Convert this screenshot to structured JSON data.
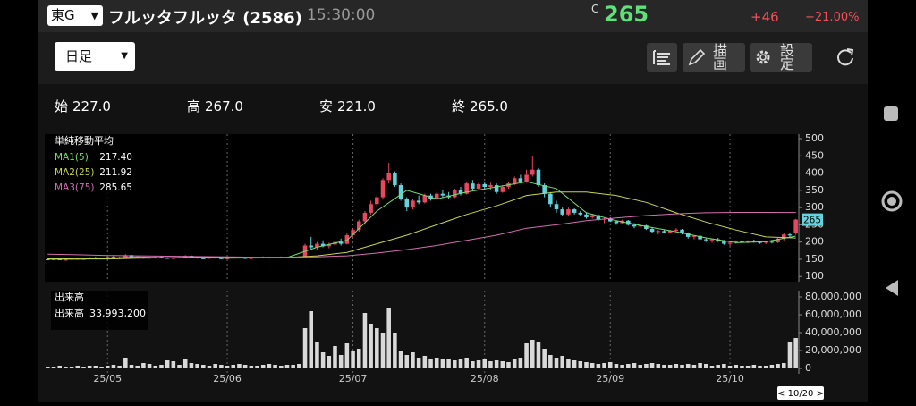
{
  "header": {
    "market": "東G",
    "name": "フルッタフルッタ (2586)",
    "time": "15:30:00",
    "c_label": "C",
    "price": "265",
    "change": "+46",
    "change_pct": "+21.00%"
  },
  "toolbar": {
    "period": "日足",
    "draw": "描画",
    "settings": "設定"
  },
  "ohlc": [
    {
      "label": "始",
      "value": "227.0"
    },
    {
      "label": "高",
      "value": "267.0"
    },
    {
      "label": "安",
      "value": "221.0"
    },
    {
      "label": "終",
      "value": "265.0"
    }
  ],
  "cursor_label": "< 10/20 >",
  "chart_data": [
    {
      "type": "candlestick",
      "title": "単純移動平均",
      "up_color": "#e8475f",
      "down_color": "#63d4de",
      "price_tag": "265",
      "grid": true,
      "xlim": [
        -0.5,
        125.5
      ],
      "xticks": [
        {
          "value": 10,
          "label": "25/05"
        },
        {
          "value": 30,
          "label": "25/06"
        },
        {
          "value": 51,
          "label": "25/07"
        },
        {
          "value": 73,
          "label": "25/08"
        },
        {
          "value": 94,
          "label": "25/09"
        },
        {
          "value": 114,
          "label": "25/10"
        }
      ],
      "ylim": [
        85,
        513
      ],
      "yticks": [
        500,
        450,
        400,
        350,
        300,
        250,
        200,
        150,
        100
      ],
      "values": [
        [
          150,
          152,
          147,
          149
        ],
        [
          149,
          151,
          147,
          150
        ],
        [
          150,
          152,
          148,
          148
        ],
        [
          148,
          150,
          146,
          149
        ],
        [
          149,
          153,
          148,
          152
        ],
        [
          152,
          154,
          149,
          150
        ],
        [
          150,
          152,
          148,
          151
        ],
        [
          151,
          156,
          150,
          155
        ],
        [
          155,
          157,
          151,
          152
        ],
        [
          152,
          155,
          150,
          154
        ],
        [
          154,
          158,
          152,
          157
        ],
        [
          157,
          160,
          153,
          155
        ],
        [
          155,
          157,
          152,
          153
        ],
        [
          153,
          165,
          152,
          162
        ],
        [
          162,
          163,
          155,
          156
        ],
        [
          156,
          158,
          153,
          155
        ],
        [
          155,
          157,
          152,
          153
        ],
        [
          153,
          156,
          151,
          155
        ],
        [
          155,
          158,
          153,
          157
        ],
        [
          157,
          159,
          153,
          154
        ],
        [
          154,
          156,
          151,
          152
        ],
        [
          152,
          155,
          150,
          154
        ],
        [
          154,
          157,
          152,
          156
        ],
        [
          156,
          162,
          154,
          160
        ],
        [
          160,
          161,
          155,
          156
        ],
        [
          156,
          158,
          152,
          153
        ],
        [
          153,
          155,
          150,
          152
        ],
        [
          152,
          156,
          151,
          155
        ],
        [
          155,
          157,
          152,
          153
        ],
        [
          153,
          155,
          150,
          151
        ],
        [
          151,
          154,
          150,
          153
        ],
        [
          153,
          156,
          151,
          155
        ],
        [
          155,
          157,
          153,
          154
        ],
        [
          154,
          156,
          151,
          152
        ],
        [
          152,
          155,
          150,
          154
        ],
        [
          154,
          157,
          152,
          156
        ],
        [
          156,
          158,
          153,
          154
        ],
        [
          154,
          156,
          152,
          155
        ],
        [
          155,
          157,
          153,
          156
        ],
        [
          156,
          158,
          154,
          155
        ],
        [
          155,
          157,
          153,
          154
        ],
        [
          154,
          156,
          152,
          155
        ],
        [
          155,
          158,
          153,
          157
        ],
        [
          157,
          195,
          156,
          190
        ],
        [
          190,
          215,
          180,
          185
        ],
        [
          185,
          200,
          178,
          195
        ],
        [
          195,
          205,
          185,
          188
        ],
        [
          188,
          198,
          182,
          193
        ],
        [
          193,
          205,
          188,
          200
        ],
        [
          200,
          210,
          190,
          195
        ],
        [
          195,
          225,
          193,
          220
        ],
        [
          220,
          240,
          215,
          235
        ],
        [
          235,
          265,
          230,
          260
        ],
        [
          260,
          290,
          250,
          285
        ],
        [
          285,
          320,
          280,
          310
        ],
        [
          310,
          335,
          300,
          330
        ],
        [
          330,
          385,
          325,
          380
        ],
        [
          380,
          430,
          370,
          400
        ],
        [
          400,
          405,
          360,
          365
        ],
        [
          365,
          370,
          320,
          325
        ],
        [
          325,
          330,
          290,
          300
        ],
        [
          300,
          325,
          295,
          320
        ],
        [
          320,
          335,
          310,
          315
        ],
        [
          315,
          340,
          312,
          335
        ],
        [
          335,
          340,
          320,
          325
        ],
        [
          325,
          345,
          322,
          340
        ],
        [
          340,
          350,
          330,
          335
        ],
        [
          335,
          345,
          325,
          330
        ],
        [
          330,
          355,
          328,
          350
        ],
        [
          350,
          360,
          335,
          340
        ],
        [
          340,
          375,
          338,
          370
        ],
        [
          370,
          380,
          350,
          355
        ],
        [
          355,
          372,
          350,
          368
        ],
        [
          368,
          375,
          355,
          360
        ],
        [
          360,
          372,
          352,
          365
        ],
        [
          365,
          370,
          340,
          345
        ],
        [
          345,
          365,
          343,
          360
        ],
        [
          360,
          375,
          355,
          370
        ],
        [
          370,
          390,
          365,
          385
        ],
        [
          385,
          395,
          370,
          375
        ],
        [
          375,
          410,
          372,
          395
        ],
        [
          395,
          450,
          390,
          410
        ],
        [
          410,
          415,
          360,
          365
        ],
        [
          365,
          370,
          330,
          340
        ],
        [
          340,
          345,
          300,
          310
        ],
        [
          310,
          320,
          285,
          295
        ],
        [
          295,
          300,
          275,
          280
        ],
        [
          280,
          300,
          275,
          295
        ],
        [
          295,
          298,
          280,
          285
        ],
        [
          285,
          290,
          275,
          280
        ],
        [
          280,
          285,
          268,
          272
        ],
        [
          272,
          282,
          268,
          278
        ],
        [
          278,
          280,
          262,
          265
        ],
        [
          265,
          270,
          255,
          268
        ],
        [
          268,
          272,
          258,
          260
        ],
        [
          260,
          262,
          250,
          255
        ],
        [
          255,
          265,
          252,
          262
        ],
        [
          262,
          264,
          248,
          250
        ],
        [
          250,
          255,
          240,
          245
        ],
        [
          245,
          252,
          240,
          248
        ],
        [
          248,
          250,
          235,
          238
        ],
        [
          238,
          242,
          225,
          230
        ],
        [
          230,
          235,
          222,
          232
        ],
        [
          232,
          236,
          225,
          228
        ],
        [
          228,
          235,
          226,
          233
        ],
        [
          233,
          240,
          230,
          236
        ],
        [
          236,
          238,
          222,
          225
        ],
        [
          225,
          228,
          210,
          215
        ],
        [
          215,
          220,
          208,
          218
        ],
        [
          218,
          222,
          205,
          208
        ],
        [
          208,
          212,
          200,
          205
        ],
        [
          205,
          210,
          198,
          208
        ],
        [
          208,
          212,
          200,
          203
        ],
        [
          203,
          206,
          192,
          195
        ],
        [
          195,
          200,
          188,
          198
        ],
        [
          198,
          205,
          195,
          202
        ],
        [
          202,
          206,
          196,
          200
        ],
        [
          200,
          205,
          196,
          203
        ],
        [
          203,
          207,
          198,
          200
        ],
        [
          200,
          204,
          195,
          198
        ],
        [
          198,
          203,
          194,
          201
        ],
        [
          201,
          206,
          196,
          199
        ],
        [
          199,
          212,
          197,
          210
        ],
        [
          210,
          225,
          205,
          222
        ],
        [
          222,
          228,
          212,
          219
        ],
        [
          227,
          267,
          221,
          265
        ]
      ],
      "series": [
        {
          "name": "MA1(5)",
          "value_label": "217.40",
          "color": "#72e06e",
          "x": [
            0,
            5,
            10,
            15,
            20,
            25,
            30,
            35,
            40,
            45,
            50,
            55,
            60,
            65,
            70,
            75,
            80,
            85,
            90,
            95,
            100,
            105,
            110,
            115,
            120,
            125
          ],
          "values": [
            150,
            150,
            153,
            157,
            154,
            156,
            153,
            154,
            155,
            185,
            205,
            290,
            350,
            325,
            345,
            360,
            375,
            355,
            285,
            262,
            245,
            230,
            212,
            198,
            201,
            217.4
          ]
        },
        {
          "name": "MA2(25)",
          "value_label": "211.92",
          "color": "#c8d64a",
          "x": [
            0,
            5,
            10,
            15,
            20,
            25,
            30,
            35,
            40,
            45,
            50,
            55,
            60,
            65,
            70,
            75,
            80,
            85,
            90,
            95,
            100,
            105,
            110,
            115,
            120,
            125
          ],
          "values": [
            152,
            151,
            151,
            153,
            154,
            155,
            155,
            155,
            155,
            160,
            170,
            195,
            220,
            250,
            280,
            305,
            335,
            345,
            345,
            335,
            315,
            285,
            258,
            235,
            215,
            211.92
          ]
        },
        {
          "name": "MA3(75)",
          "value_label": "285.65",
          "color": "#d36fb0",
          "x": [
            0,
            5,
            10,
            15,
            20,
            25,
            30,
            35,
            40,
            45,
            50,
            55,
            60,
            65,
            70,
            75,
            80,
            85,
            90,
            95,
            100,
            105,
            110,
            115,
            120,
            125
          ],
          "values": [
            165,
            163,
            161,
            160,
            159,
            158,
            157,
            156,
            156,
            157,
            160,
            168,
            178,
            190,
            205,
            220,
            240,
            250,
            262,
            270,
            277,
            282,
            285,
            286,
            286,
            285.65
          ]
        }
      ]
    },
    {
      "type": "bar",
      "title": "出来高",
      "legend_name": "出来高",
      "legend_value": "33,993,200",
      "color": "#d9d9d9",
      "xlim": [
        -0.5,
        125.5
      ],
      "ylim": [
        0,
        87000000
      ],
      "yticks": [
        {
          "value": 80000000,
          "label": "80,000,000"
        },
        {
          "value": 60000000,
          "label": "60,000,000"
        },
        {
          "value": 40000000,
          "label": "40,000,000"
        },
        {
          "value": 20000000,
          "label": "20,000,000"
        },
        0
      ],
      "values": [
        2000000,
        2000000,
        3000000,
        2000000,
        2000000,
        3000000,
        2000000,
        3000000,
        3000000,
        2000000,
        3000000,
        4000000,
        3000000,
        12000000,
        4000000,
        3000000,
        6000000,
        5000000,
        3000000,
        4000000,
        9000000,
        8000000,
        4000000,
        10000000,
        6000000,
        5000000,
        4000000,
        3000000,
        5000000,
        4000000,
        3000000,
        4000000,
        5000000,
        4000000,
        3000000,
        3000000,
        4000000,
        5000000,
        4000000,
        3000000,
        4000000,
        4000000,
        5000000,
        45000000,
        64000000,
        30000000,
        18000000,
        14000000,
        25000000,
        15000000,
        28000000,
        20000000,
        22000000,
        62000000,
        50000000,
        45000000,
        40000000,
        68000000,
        40000000,
        20000000,
        15000000,
        18000000,
        12000000,
        14000000,
        10000000,
        12000000,
        10000000,
        11000000,
        9000000,
        10000000,
        12000000,
        8000000,
        9000000,
        10000000,
        8000000,
        9000000,
        8000000,
        7000000,
        10000000,
        12000000,
        28000000,
        32000000,
        30000000,
        22000000,
        15000000,
        12000000,
        14000000,
        10000000,
        9000000,
        8000000,
        7000000,
        6000000,
        5000000,
        6000000,
        7000000,
        5000000,
        4000000,
        5000000,
        6000000,
        4000000,
        5000000,
        6000000,
        5000000,
        4000000,
        4000000,
        5000000,
        4000000,
        5000000,
        4000000,
        6000000,
        5000000,
        3000000,
        4000000,
        5000000,
        3000000,
        4000000,
        3000000,
        3000000,
        4000000,
        3000000,
        3000000,
        4000000,
        5000000,
        6000000,
        30000000,
        33993200
      ]
    }
  ]
}
